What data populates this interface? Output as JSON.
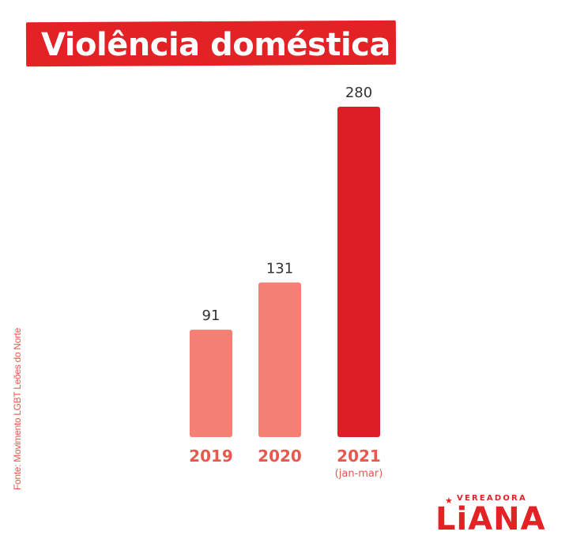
{
  "header": {
    "title": "Violência doméstica"
  },
  "source_note": "Fonte: Movimento LGBT Leões do Norte",
  "brand": {
    "top": "VEREADORA",
    "name": "LiANA"
  },
  "colors": {
    "accent": "#e32226",
    "light_bar": "#f47f73",
    "dark_bar": "#db1f25",
    "label_gray": "#333333"
  },
  "chart_data": {
    "type": "bar",
    "categories": [
      "2019",
      "2020",
      "2021"
    ],
    "category_sublabels": [
      "",
      "",
      "(jan-mar)"
    ],
    "values": [
      91,
      131,
      280
    ],
    "bar_colors": [
      "#f47f73",
      "#f47f73",
      "#db1f25"
    ],
    "title": "Violência doméstica",
    "xlabel": "",
    "ylabel": "",
    "ylim": [
      0,
      280
    ],
    "grid": false,
    "legend": "none"
  }
}
